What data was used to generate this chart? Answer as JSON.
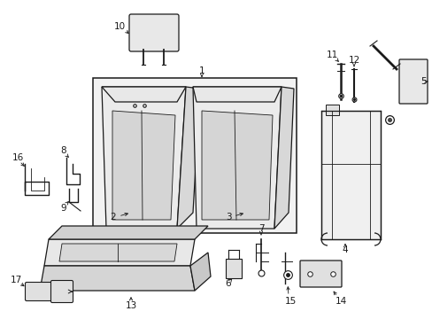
{
  "background_color": "#ffffff",
  "line_color": "#1a1a1a",
  "fill_light": "#f0f0f0",
  "fill_mid": "#e0e0e0",
  "fill_dark": "#cccccc"
}
